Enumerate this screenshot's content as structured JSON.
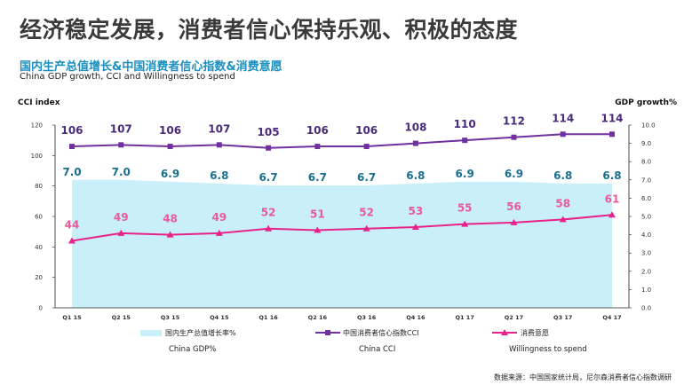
{
  "headline": "经济稳定发展，消费者信心保持乐观、积极的态度",
  "subtitle_cn": "国内生产总值增长&中国消费者信心指数&消费意愿",
  "subtitle_en": "China GDP growth,  CCI and Willingness to spend",
  "source": "数据来源：中国国家统计局，尼尔森消费者信心指数调研",
  "chart_data": {
    "type": "bar",
    "categories": [
      "Q1 15",
      "Q2 15",
      "Q3 15",
      "Q4 15",
      "Q1 16",
      "Q2 16",
      "Q3 16",
      "Q4 16",
      "Q1 17",
      "Q2 17",
      "Q3 17",
      "Q4 17"
    ],
    "y_left": {
      "title": "CCI index",
      "range": [
        0,
        120
      ],
      "ticks": [
        "0",
        "20",
        "40",
        "60",
        "80",
        "100",
        "120"
      ]
    },
    "y_right": {
      "title": "GDP growth%",
      "range": [
        0,
        10
      ],
      "ticks": [
        "0.0",
        "1.0",
        "2.0",
        "3.0",
        "4.0",
        "5.0",
        "6.0",
        "7.0",
        "8.0",
        "9.0",
        "10.0"
      ]
    },
    "series": [
      {
        "name": "国内生产总值增长率%",
        "name_en": "China GDP%",
        "kind": "area",
        "axis": "right",
        "color": "#c9effa",
        "values": [
          7.0,
          7.0,
          6.9,
          6.8,
          6.7,
          6.7,
          6.7,
          6.8,
          6.9,
          6.9,
          6.8,
          6.8
        ],
        "labels": [
          "7.0",
          "7.0",
          "6.9",
          "6.8",
          "6.7",
          "6.7",
          "6.7",
          "6.8",
          "6.9",
          "6.9",
          "6.8",
          "6.8"
        ]
      },
      {
        "name": "中国消费者信心指数CCI",
        "name_en": "China CCI",
        "kind": "line",
        "axis": "left",
        "color": "#7030a0",
        "values": [
          106,
          107,
          106,
          107,
          105,
          106,
          106,
          108,
          110,
          112,
          114,
          114
        ]
      },
      {
        "name": "消费意愿",
        "name_en": "Willingness to spend",
        "kind": "line",
        "axis": "left",
        "color": "#e8228a",
        "values": [
          44,
          49,
          48,
          49,
          52,
          51,
          52,
          53,
          55,
          56,
          58,
          61
        ]
      }
    ],
    "grid": false,
    "legend": "bottom"
  }
}
